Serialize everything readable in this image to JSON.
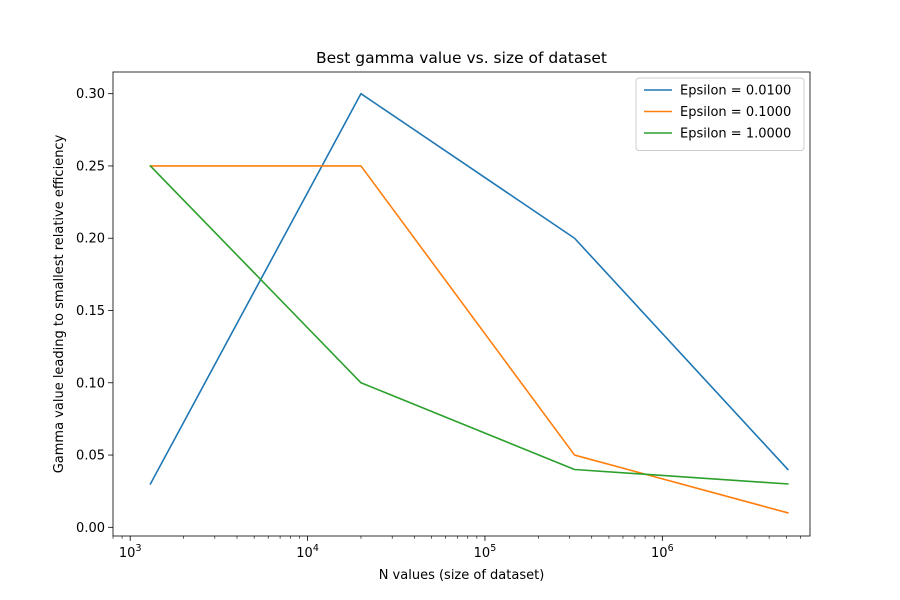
{
  "chart_data": {
    "type": "line",
    "title": "Best gamma value vs. size of dataset",
    "xlabel": "N values (size of dataset)",
    "ylabel": "Gamma value leading to smallest relative efficiency",
    "xscale": "log",
    "xlim": [
      800,
      6800000
    ],
    "ylim": [
      -0.006,
      0.315
    ],
    "x": [
      1300,
      20000,
      320000,
      5100000
    ],
    "series": [
      {
        "name": "Epsilon = 0.0100",
        "color": "#1f77b4",
        "values": [
          0.03,
          0.3,
          0.2,
          0.04
        ]
      },
      {
        "name": "Epsilon = 0.1000",
        "color": "#ff7f0e",
        "values": [
          0.25,
          0.25,
          0.05,
          0.01
        ]
      },
      {
        "name": "Epsilon = 1.0000",
        "color": "#2ca02c",
        "values": [
          0.25,
          0.1,
          0.04,
          0.03
        ]
      }
    ],
    "x_ticks": [
      {
        "value": 1000,
        "base": "10",
        "exp": "3"
      },
      {
        "value": 10000,
        "base": "10",
        "exp": "4"
      },
      {
        "value": 100000,
        "base": "10",
        "exp": "5"
      },
      {
        "value": 1000000,
        "base": "10",
        "exp": "6"
      }
    ],
    "y_ticks": [
      {
        "value": 0.0,
        "label": "0.00"
      },
      {
        "value": 0.05,
        "label": "0.05"
      },
      {
        "value": 0.1,
        "label": "0.10"
      },
      {
        "value": 0.15,
        "label": "0.15"
      },
      {
        "value": 0.2,
        "label": "0.20"
      },
      {
        "value": 0.25,
        "label": "0.25"
      },
      {
        "value": 0.3,
        "label": "0.30"
      }
    ],
    "grid": false,
    "legend_position": "top-right"
  }
}
